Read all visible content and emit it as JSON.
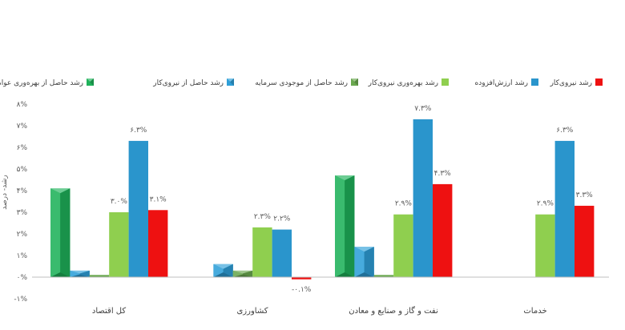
{
  "chart_data": {
    "type": "bar",
    "categories": [
      "کل اقتصاد",
      "کشاورزی",
      "نفت و گاز و صنایع و معادن",
      "خدمات"
    ],
    "ylabel": "رشد- درصد",
    "ylim": [
      -1,
      8
    ],
    "yticks": [
      "-۱%",
      "۰%",
      "۱%",
      "۲%",
      "۳%",
      "۴%",
      "۵%",
      "۶%",
      "۷%",
      "۸%"
    ],
    "ytick_values": [
      -1,
      0,
      1,
      2,
      3,
      4,
      5,
      6,
      7,
      8
    ],
    "legend_position": "top",
    "series": [
      {
        "name": "رشد حاصل از بهره‌وری عوامل تولید",
        "color": "#1fb25a",
        "style": "pyramid",
        "values": [
          4.1,
          null,
          4.7,
          null
        ],
        "labels": [
          "",
          "",
          "",
          ""
        ]
      },
      {
        "name": "رشد حاصل از نیروی‌کار",
        "color": "#2e9fd8",
        "style": "pyramid",
        "values": [
          0.3,
          0.6,
          1.4,
          null
        ],
        "labels": [
          "",
          "",
          "",
          ""
        ]
      },
      {
        "name": "رشد حاصل از موجودی سرمایه",
        "color": "#6aa84f",
        "style": "pyramid",
        "values": [
          0.1,
          0.3,
          0.1,
          null
        ],
        "labels": [
          "",
          "",
          "",
          ""
        ]
      },
      {
        "name": "رشد بهره‌وری نیروی‌کار",
        "color": "#8fcf4f",
        "style": "flat",
        "values": [
          3.0,
          2.3,
          2.9,
          2.9
        ],
        "labels": [
          "۳.۰%",
          "۲.۳%",
          "۲.۹%",
          "۲.۹%"
        ]
      },
      {
        "name": "رشد ارزش‌افزوده",
        "color": "#2a95cc",
        "style": "flat",
        "values": [
          6.3,
          2.2,
          7.3,
          6.3
        ],
        "labels": [
          "۶.۳%",
          "۲.۲%",
          "۷.۳%",
          "۶.۳%"
        ]
      },
      {
        "name": "رشد نیروی‌کار",
        "color": "#ee1111",
        "style": "flat",
        "values": [
          3.1,
          -0.1,
          4.3,
          3.3
        ],
        "labels": [
          "۳.۱%",
          "-۰.۱%",
          "۴.۳%",
          "۳.۳%"
        ]
      }
    ]
  }
}
